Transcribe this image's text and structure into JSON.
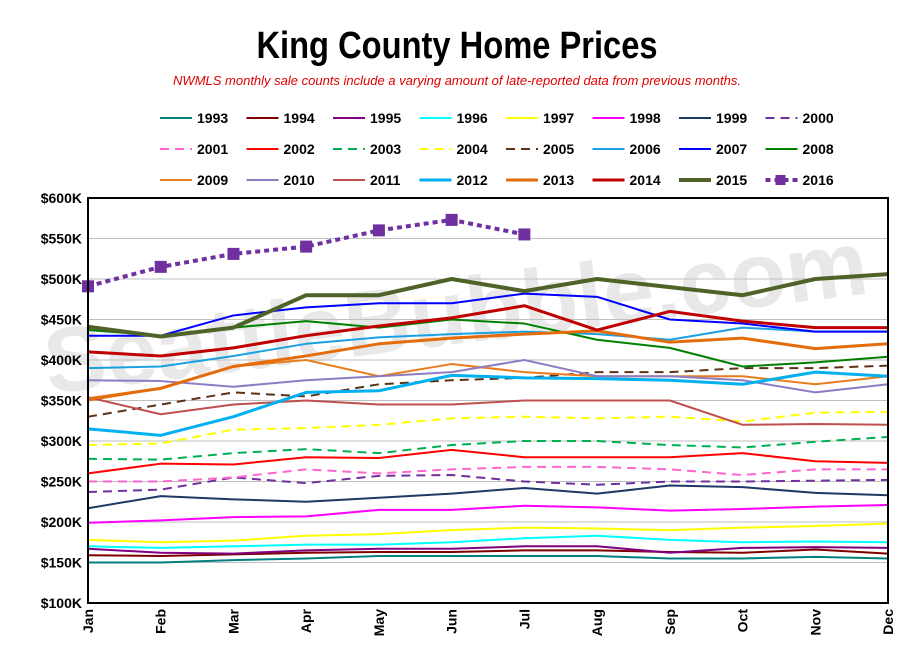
{
  "chart_data": {
    "type": "line",
    "title": "King County Home Prices",
    "subtitle": "NWMLS monthly sale counts include a varying amount of late-reported  data from previous months.",
    "watermark": "SeattleBubble.com",
    "xlabel": "",
    "ylabel": "",
    "categories": [
      "Jan",
      "Feb",
      "Mar",
      "Apr",
      "May",
      "Jun",
      "Jul",
      "Aug",
      "Sep",
      "Oct",
      "Nov",
      "Dec"
    ],
    "ylim": [
      100000,
      600000
    ],
    "y_ticks": [
      {
        "value": 100000,
        "label": "$100K"
      },
      {
        "value": 150000,
        "label": "$150K"
      },
      {
        "value": 200000,
        "label": "$200K"
      },
      {
        "value": 250000,
        "label": "$250K"
      },
      {
        "value": 300000,
        "label": "$300K"
      },
      {
        "value": 350000,
        "label": "$350K"
      },
      {
        "value": 400000,
        "label": "$400K"
      },
      {
        "value": 450000,
        "label": "$450K"
      },
      {
        "value": 500000,
        "label": "$500K"
      },
      {
        "value": 550000,
        "label": "$550K"
      },
      {
        "value": 600000,
        "label": "$600K"
      }
    ],
    "grid": true,
    "legend_position": "top",
    "series": [
      {
        "name": "1993",
        "color": "#008080",
        "dash": "solid",
        "width": 2,
        "values": [
          150000,
          150000,
          153000,
          155000,
          158000,
          158000,
          158000,
          158000,
          155000,
          155000,
          157000,
          155000
        ]
      },
      {
        "name": "1994",
        "color": "#800000",
        "dash": "solid",
        "width": 2,
        "values": [
          159000,
          158000,
          160000,
          162000,
          163000,
          163000,
          165000,
          165000,
          163000,
          162000,
          166000,
          161000
        ]
      },
      {
        "name": "1995",
        "color": "#800080",
        "dash": "solid",
        "width": 2,
        "values": [
          167000,
          162000,
          161000,
          165000,
          167000,
          167000,
          170000,
          170000,
          162000,
          168000,
          169000,
          168000
        ]
      },
      {
        "name": "1996",
        "color": "#00ffff",
        "dash": "solid",
        "width": 2,
        "values": [
          170000,
          168000,
          170000,
          172000,
          172000,
          175000,
          180000,
          183000,
          178000,
          175000,
          176000,
          175000
        ]
      },
      {
        "name": "1997",
        "color": "#ffff00",
        "dash": "solid",
        "width": 2,
        "values": [
          178000,
          175000,
          177000,
          183000,
          185000,
          190000,
          193000,
          192000,
          190000,
          193000,
          195000,
          198000
        ]
      },
      {
        "name": "1998",
        "color": "#ff00ff",
        "dash": "solid",
        "width": 2,
        "values": [
          199000,
          202000,
          206000,
          207000,
          215000,
          215000,
          220000,
          218000,
          214000,
          216000,
          219000,
          221000
        ]
      },
      {
        "name": "1999",
        "color": "#1f3864",
        "dash": "solid",
        "width": 2,
        "values": [
          217000,
          232000,
          228000,
          225000,
          230000,
          235000,
          242000,
          235000,
          245000,
          243000,
          236000,
          233000
        ]
      },
      {
        "name": "2000",
        "color": "#7030a0",
        "dash": "dashed",
        "width": 2,
        "values": [
          237000,
          240000,
          255000,
          248000,
          257000,
          258000,
          250000,
          246000,
          250000,
          250000,
          251000,
          252000
        ]
      },
      {
        "name": "2001",
        "color": "#ff66cc",
        "dash": "dashed",
        "width": 2,
        "values": [
          250000,
          250000,
          255000,
          265000,
          260000,
          265000,
          268000,
          268000,
          265000,
          258000,
          265000,
          265000
        ]
      },
      {
        "name": "2002",
        "color": "#ff0000",
        "dash": "solid",
        "width": 2,
        "values": [
          260000,
          272000,
          271000,
          280000,
          279000,
          289000,
          280000,
          280000,
          280000,
          285000,
          275000,
          273000
        ]
      },
      {
        "name": "2003",
        "color": "#00b050",
        "dash": "dashed",
        "width": 2,
        "values": [
          278000,
          277000,
          285000,
          290000,
          285000,
          295000,
          300000,
          300000,
          295000,
          292000,
          299000,
          305000
        ]
      },
      {
        "name": "2004",
        "color": "#ffff00",
        "dash": "dashed",
        "width": 2,
        "values": [
          295000,
          297000,
          314000,
          316000,
          320000,
          328000,
          330000,
          328000,
          330000,
          324000,
          335000,
          336000
        ]
      },
      {
        "name": "2005",
        "color": "#5c3317",
        "dash": "dashed",
        "width": 2,
        "values": [
          330000,
          345000,
          360000,
          355000,
          370000,
          375000,
          378000,
          385000,
          385000,
          390000,
          390000,
          393000
        ]
      },
      {
        "name": "2006",
        "color": "#1ba1e2",
        "dash": "solid",
        "width": 2,
        "values": [
          390000,
          392000,
          405000,
          420000,
          428000,
          432000,
          435000,
          432000,
          425000,
          440000,
          435000,
          435000
        ]
      },
      {
        "name": "2007",
        "color": "#0000ff",
        "dash": "solid",
        "width": 2,
        "values": [
          430000,
          430000,
          455000,
          465000,
          470000,
          470000,
          482000,
          478000,
          450000,
          445000,
          435000,
          435000
        ]
      },
      {
        "name": "2008",
        "color": "#008000",
        "dash": "solid",
        "width": 2,
        "values": [
          437000,
          430000,
          440000,
          448000,
          440000,
          450000,
          445000,
          425000,
          415000,
          392000,
          397000,
          404000
        ]
      },
      {
        "name": "2009",
        "color": "#e97c1c",
        "dash": "solid",
        "width": 2,
        "values": [
          350000,
          365000,
          392000,
          400000,
          380000,
          395000,
          385000,
          380000,
          380000,
          380000,
          370000,
          380000
        ]
      },
      {
        "name": "2010",
        "color": "#8e7cc3",
        "dash": "solid",
        "width": 2,
        "values": [
          375000,
          374000,
          367000,
          375000,
          380000,
          385000,
          400000,
          380000,
          380000,
          375000,
          360000,
          370000
        ]
      },
      {
        "name": "2011",
        "color": "#c0504d",
        "dash": "solid",
        "width": 2,
        "values": [
          354000,
          333000,
          345000,
          350000,
          345000,
          345000,
          350000,
          350000,
          350000,
          320000,
          321000,
          320000
        ]
      },
      {
        "name": "2012",
        "color": "#00b0f0",
        "dash": "solid",
        "width": 3,
        "values": [
          315000,
          307000,
          330000,
          360000,
          362000,
          381000,
          378000,
          377000,
          375000,
          370000,
          385000,
          380000
        ]
      },
      {
        "name": "2013",
        "color": "#e46c0a",
        "dash": "solid",
        "width": 3,
        "values": [
          352000,
          365000,
          392000,
          405000,
          420000,
          427000,
          432000,
          436000,
          422000,
          427000,
          414000,
          420000
        ]
      },
      {
        "name": "2014",
        "color": "#c00000",
        "dash": "solid",
        "width": 3,
        "values": [
          410000,
          405000,
          415000,
          430000,
          442000,
          452000,
          467000,
          437000,
          460000,
          448000,
          440000,
          440000
        ]
      },
      {
        "name": "2015",
        "color": "#4f6228",
        "dash": "solid",
        "width": 4,
        "values": [
          441000,
          429000,
          440000,
          480000,
          480000,
          500000,
          485000,
          500000,
          490000,
          480000,
          500000,
          506000
        ]
      },
      {
        "name": "2016",
        "color": "#7030a0",
        "dash": "dotted-markers",
        "width": 4,
        "values": [
          491000,
          515000,
          531000,
          540000,
          560000,
          573000,
          555000,
          null,
          null,
          null,
          null,
          null
        ]
      }
    ]
  }
}
